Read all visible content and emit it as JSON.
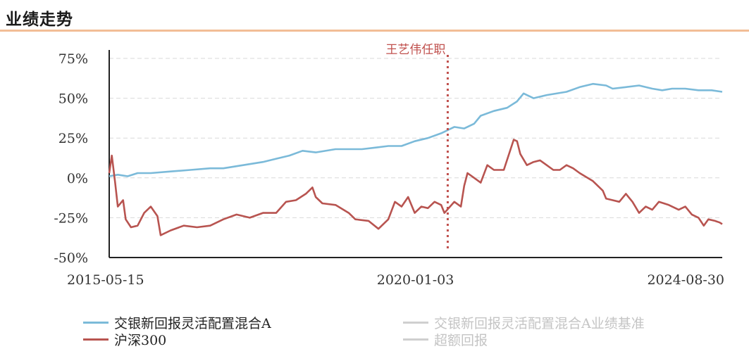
{
  "header": {
    "title": "业绩走势"
  },
  "colors": {
    "fund": "#7bbad9",
    "benchmark": "#cfcfcf",
    "index": "#b85450",
    "excess": "#cfcfcf",
    "marker": "#c0504d",
    "title_rule": "#f2bd96"
  },
  "chart_data": {
    "type": "line",
    "ylim": [
      -50,
      75
    ],
    "yticks": [
      "75%",
      "50%",
      "25%",
      "0%",
      "-25%",
      "-50%"
    ],
    "ytick_values": [
      75,
      50,
      25,
      0,
      -25,
      -50
    ],
    "xtick_labels": [
      "2015-05-15",
      "2020-01-03",
      "2024-08-30"
    ],
    "xtick_values": [
      2015.37,
      2020.01,
      2024.66
    ],
    "x_range": [
      2015.37,
      2024.66
    ],
    "grid": true,
    "legend_position": "bottom",
    "annotation": {
      "label": "王艺伟任职",
      "x": 2020.5
    },
    "series": [
      {
        "name": "交银新回报灵活配置混合A",
        "visible": true,
        "points": [
          [
            2015.37,
            1
          ],
          [
            2015.5,
            2
          ],
          [
            2015.65,
            1
          ],
          [
            2015.8,
            3
          ],
          [
            2016.0,
            3
          ],
          [
            2016.3,
            4
          ],
          [
            2016.6,
            5
          ],
          [
            2016.9,
            6
          ],
          [
            2017.1,
            6
          ],
          [
            2017.4,
            8
          ],
          [
            2017.7,
            10
          ],
          [
            2017.9,
            12
          ],
          [
            2018.1,
            14
          ],
          [
            2018.3,
            17
          ],
          [
            2018.5,
            16
          ],
          [
            2018.8,
            18
          ],
          [
            2019.0,
            18
          ],
          [
            2019.2,
            18
          ],
          [
            2019.4,
            19
          ],
          [
            2019.6,
            20
          ],
          [
            2019.8,
            20
          ],
          [
            2020.0,
            23
          ],
          [
            2020.2,
            25
          ],
          [
            2020.4,
            28
          ],
          [
            2020.6,
            32
          ],
          [
            2020.75,
            31
          ],
          [
            2020.9,
            34
          ],
          [
            2021.0,
            39
          ],
          [
            2021.2,
            42
          ],
          [
            2021.4,
            44
          ],
          [
            2021.55,
            48
          ],
          [
            2021.65,
            53
          ],
          [
            2021.8,
            50
          ],
          [
            2022.0,
            52
          ],
          [
            2022.3,
            54
          ],
          [
            2022.5,
            57
          ],
          [
            2022.7,
            59
          ],
          [
            2022.9,
            58
          ],
          [
            2023.0,
            56
          ],
          [
            2023.2,
            57
          ],
          [
            2023.4,
            58
          ],
          [
            2023.6,
            56
          ],
          [
            2023.75,
            55
          ],
          [
            2023.9,
            56
          ],
          [
            2024.1,
            56
          ],
          [
            2024.3,
            55
          ],
          [
            2024.5,
            55
          ],
          [
            2024.66,
            54
          ]
        ]
      },
      {
        "name": "交银新回报灵活配置混合A业绩基准",
        "visible": false,
        "points": []
      },
      {
        "name": "沪深300",
        "visible": true,
        "points": [
          [
            2015.37,
            3
          ],
          [
            2015.41,
            14
          ],
          [
            2015.46,
            -3
          ],
          [
            2015.5,
            -18
          ],
          [
            2015.58,
            -14
          ],
          [
            2015.62,
            -26
          ],
          [
            2015.7,
            -31
          ],
          [
            2015.8,
            -30
          ],
          [
            2015.9,
            -22
          ],
          [
            2016.0,
            -18
          ],
          [
            2016.1,
            -24
          ],
          [
            2016.15,
            -36
          ],
          [
            2016.3,
            -33
          ],
          [
            2016.5,
            -30
          ],
          [
            2016.7,
            -31
          ],
          [
            2016.9,
            -30
          ],
          [
            2017.1,
            -26
          ],
          [
            2017.3,
            -23
          ],
          [
            2017.5,
            -25
          ],
          [
            2017.7,
            -22
          ],
          [
            2017.9,
            -22
          ],
          [
            2018.05,
            -15
          ],
          [
            2018.2,
            -14
          ],
          [
            2018.35,
            -10
          ],
          [
            2018.45,
            -6
          ],
          [
            2018.5,
            -12
          ],
          [
            2018.6,
            -16
          ],
          [
            2018.8,
            -17
          ],
          [
            2019.0,
            -22
          ],
          [
            2019.1,
            -26
          ],
          [
            2019.3,
            -27
          ],
          [
            2019.45,
            -32
          ],
          [
            2019.6,
            -26
          ],
          [
            2019.7,
            -15
          ],
          [
            2019.8,
            -18
          ],
          [
            2019.9,
            -12
          ],
          [
            2020.0,
            -22
          ],
          [
            2020.1,
            -18
          ],
          [
            2020.2,
            -19
          ],
          [
            2020.3,
            -15
          ],
          [
            2020.4,
            -17
          ],
          [
            2020.45,
            -22
          ],
          [
            2020.6,
            -15
          ],
          [
            2020.7,
            -18
          ],
          [
            2020.75,
            -5
          ],
          [
            2020.8,
            3
          ],
          [
            2020.9,
            0
          ],
          [
            2021.0,
            -3
          ],
          [
            2021.1,
            8
          ],
          [
            2021.2,
            5
          ],
          [
            2021.35,
            5
          ],
          [
            2021.5,
            24
          ],
          [
            2021.55,
            23
          ],
          [
            2021.6,
            15
          ],
          [
            2021.7,
            8
          ],
          [
            2021.8,
            10
          ],
          [
            2021.9,
            11
          ],
          [
            2022.0,
            8
          ],
          [
            2022.1,
            5
          ],
          [
            2022.2,
            5
          ],
          [
            2022.3,
            8
          ],
          [
            2022.4,
            6
          ],
          [
            2022.5,
            3
          ],
          [
            2022.7,
            -2
          ],
          [
            2022.85,
            -8
          ],
          [
            2022.9,
            -13
          ],
          [
            2023.0,
            -14
          ],
          [
            2023.1,
            -15
          ],
          [
            2023.2,
            -10
          ],
          [
            2023.3,
            -15
          ],
          [
            2023.4,
            -22
          ],
          [
            2023.5,
            -18
          ],
          [
            2023.6,
            -20
          ],
          [
            2023.7,
            -15
          ],
          [
            2023.85,
            -17
          ],
          [
            2024.0,
            -20
          ],
          [
            2024.1,
            -18
          ],
          [
            2024.2,
            -23
          ],
          [
            2024.3,
            -25
          ],
          [
            2024.38,
            -30
          ],
          [
            2024.45,
            -26
          ],
          [
            2024.55,
            -27
          ],
          [
            2024.62,
            -28
          ],
          [
            2024.66,
            -29
          ]
        ]
      },
      {
        "name": "超额回报",
        "visible": false,
        "points": []
      }
    ]
  }
}
